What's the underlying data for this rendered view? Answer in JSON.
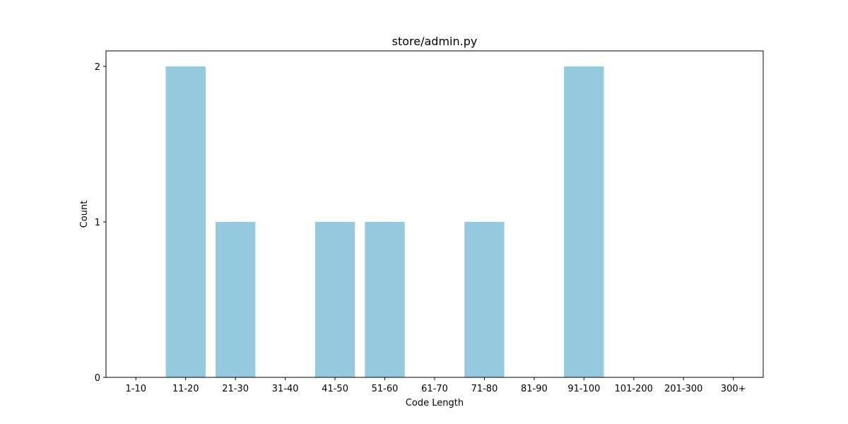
{
  "chart_data": {
    "type": "bar",
    "title": "store/admin.py",
    "xlabel": "Code Length",
    "ylabel": "Count",
    "categories": [
      "1-10",
      "11-20",
      "21-30",
      "31-40",
      "41-50",
      "51-60",
      "61-70",
      "71-80",
      "81-90",
      "91-100",
      "101-200",
      "201-300",
      "300+"
    ],
    "values": [
      0,
      2,
      1,
      0,
      1,
      1,
      0,
      1,
      0,
      2,
      0,
      0,
      0
    ],
    "ylim": [
      0,
      2.1
    ],
    "yticks": [
      0,
      1,
      2
    ],
    "grid": false,
    "legend": "none",
    "bar_color": "#96c9dd"
  }
}
